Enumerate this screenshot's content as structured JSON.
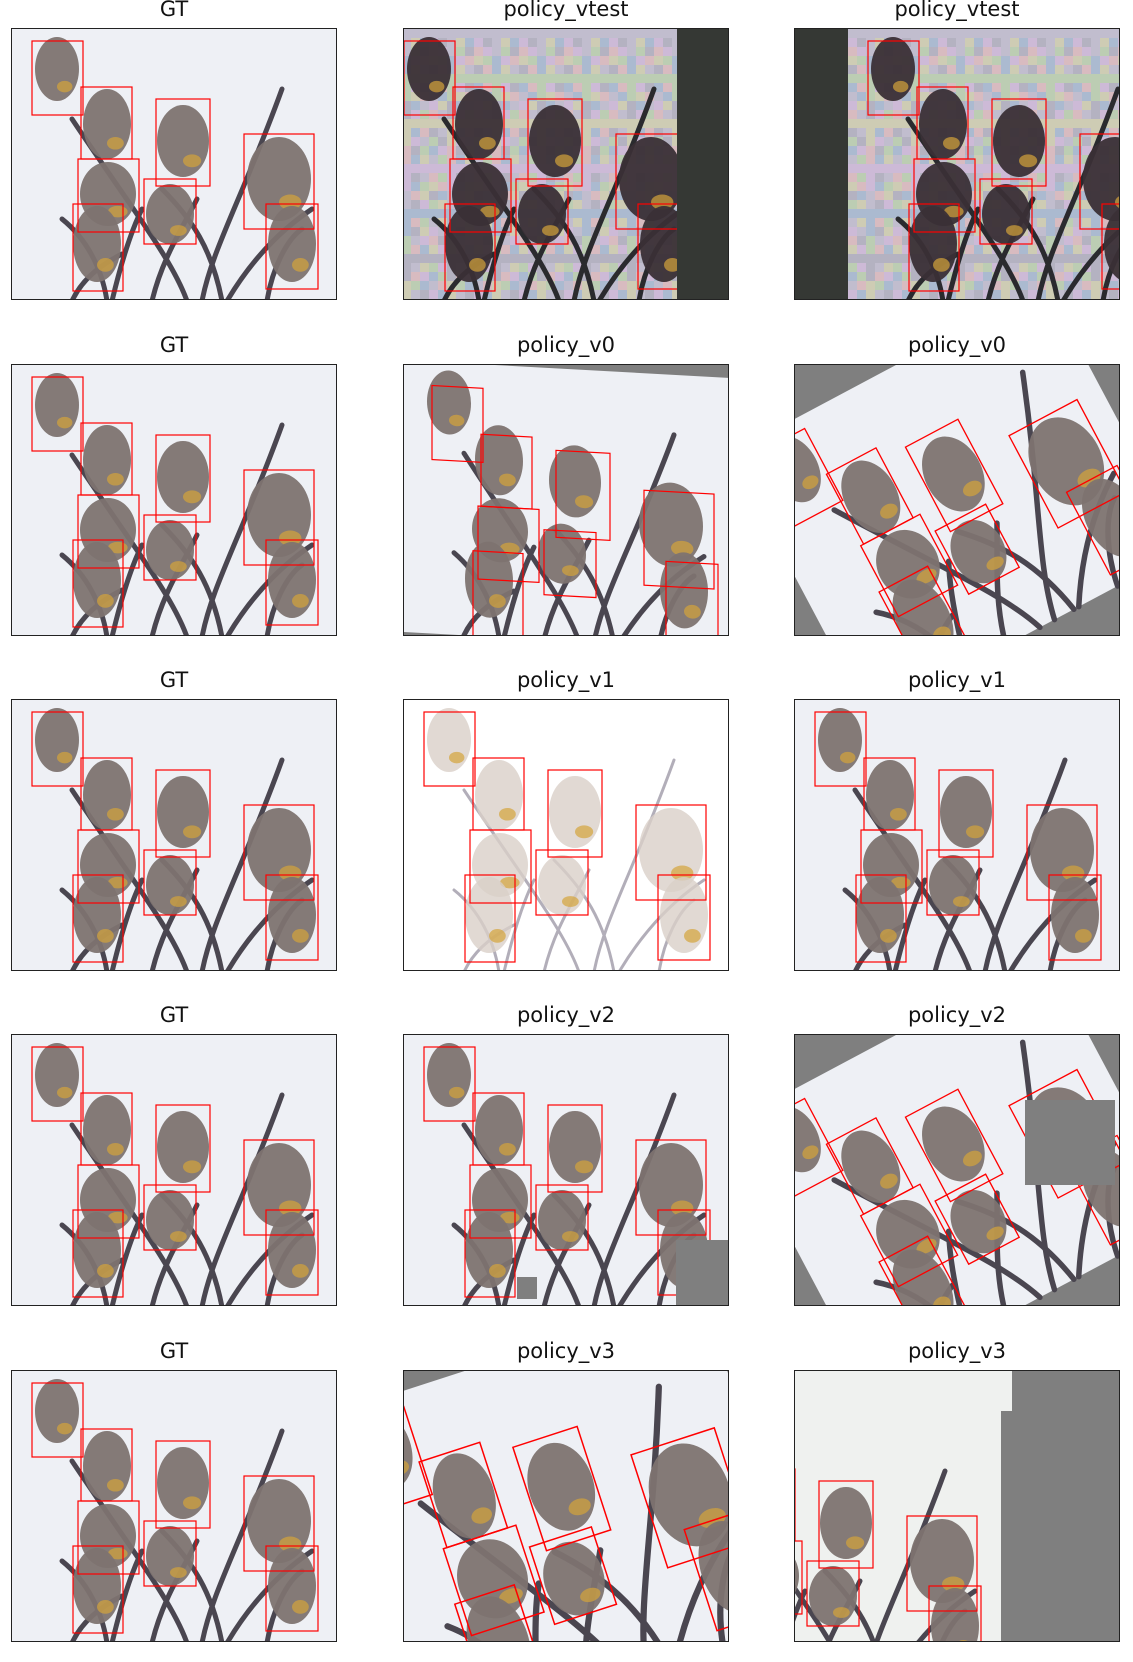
{
  "figure": {
    "rows": [
      {
        "panels": [
          {
            "title": "GT",
            "variant": "gt"
          },
          {
            "title": "policy_vtest",
            "variant": "noise-right"
          },
          {
            "title": "policy_vtest",
            "variant": "noise-left"
          }
        ]
      },
      {
        "panels": [
          {
            "title": "GT",
            "variant": "gt"
          },
          {
            "title": "policy_v0",
            "variant": "shear"
          },
          {
            "title": "policy_v0",
            "variant": "rotate"
          }
        ]
      },
      {
        "panels": [
          {
            "title": "GT",
            "variant": "gt"
          },
          {
            "title": "policy_v1",
            "variant": "washed"
          },
          {
            "title": "policy_v1",
            "variant": "plain"
          }
        ]
      },
      {
        "panels": [
          {
            "title": "GT",
            "variant": "gt"
          },
          {
            "title": "policy_v2",
            "variant": "cutout"
          },
          {
            "title": "policy_v2",
            "variant": "rotate-cutout"
          }
        ]
      },
      {
        "panels": [
          {
            "title": "GT",
            "variant": "gt"
          },
          {
            "title": "policy_v3",
            "variant": "rotate-zoom"
          },
          {
            "title": "policy_v3",
            "variant": "zoom-right"
          }
        ]
      }
    ],
    "colors": {
      "background": "#eef0f5",
      "box": "#ff0000",
      "fill_gray": "#7f7f7f",
      "fill_dark": "#353834",
      "branch": "#4a4650",
      "bird": "#7d7370"
    }
  }
}
